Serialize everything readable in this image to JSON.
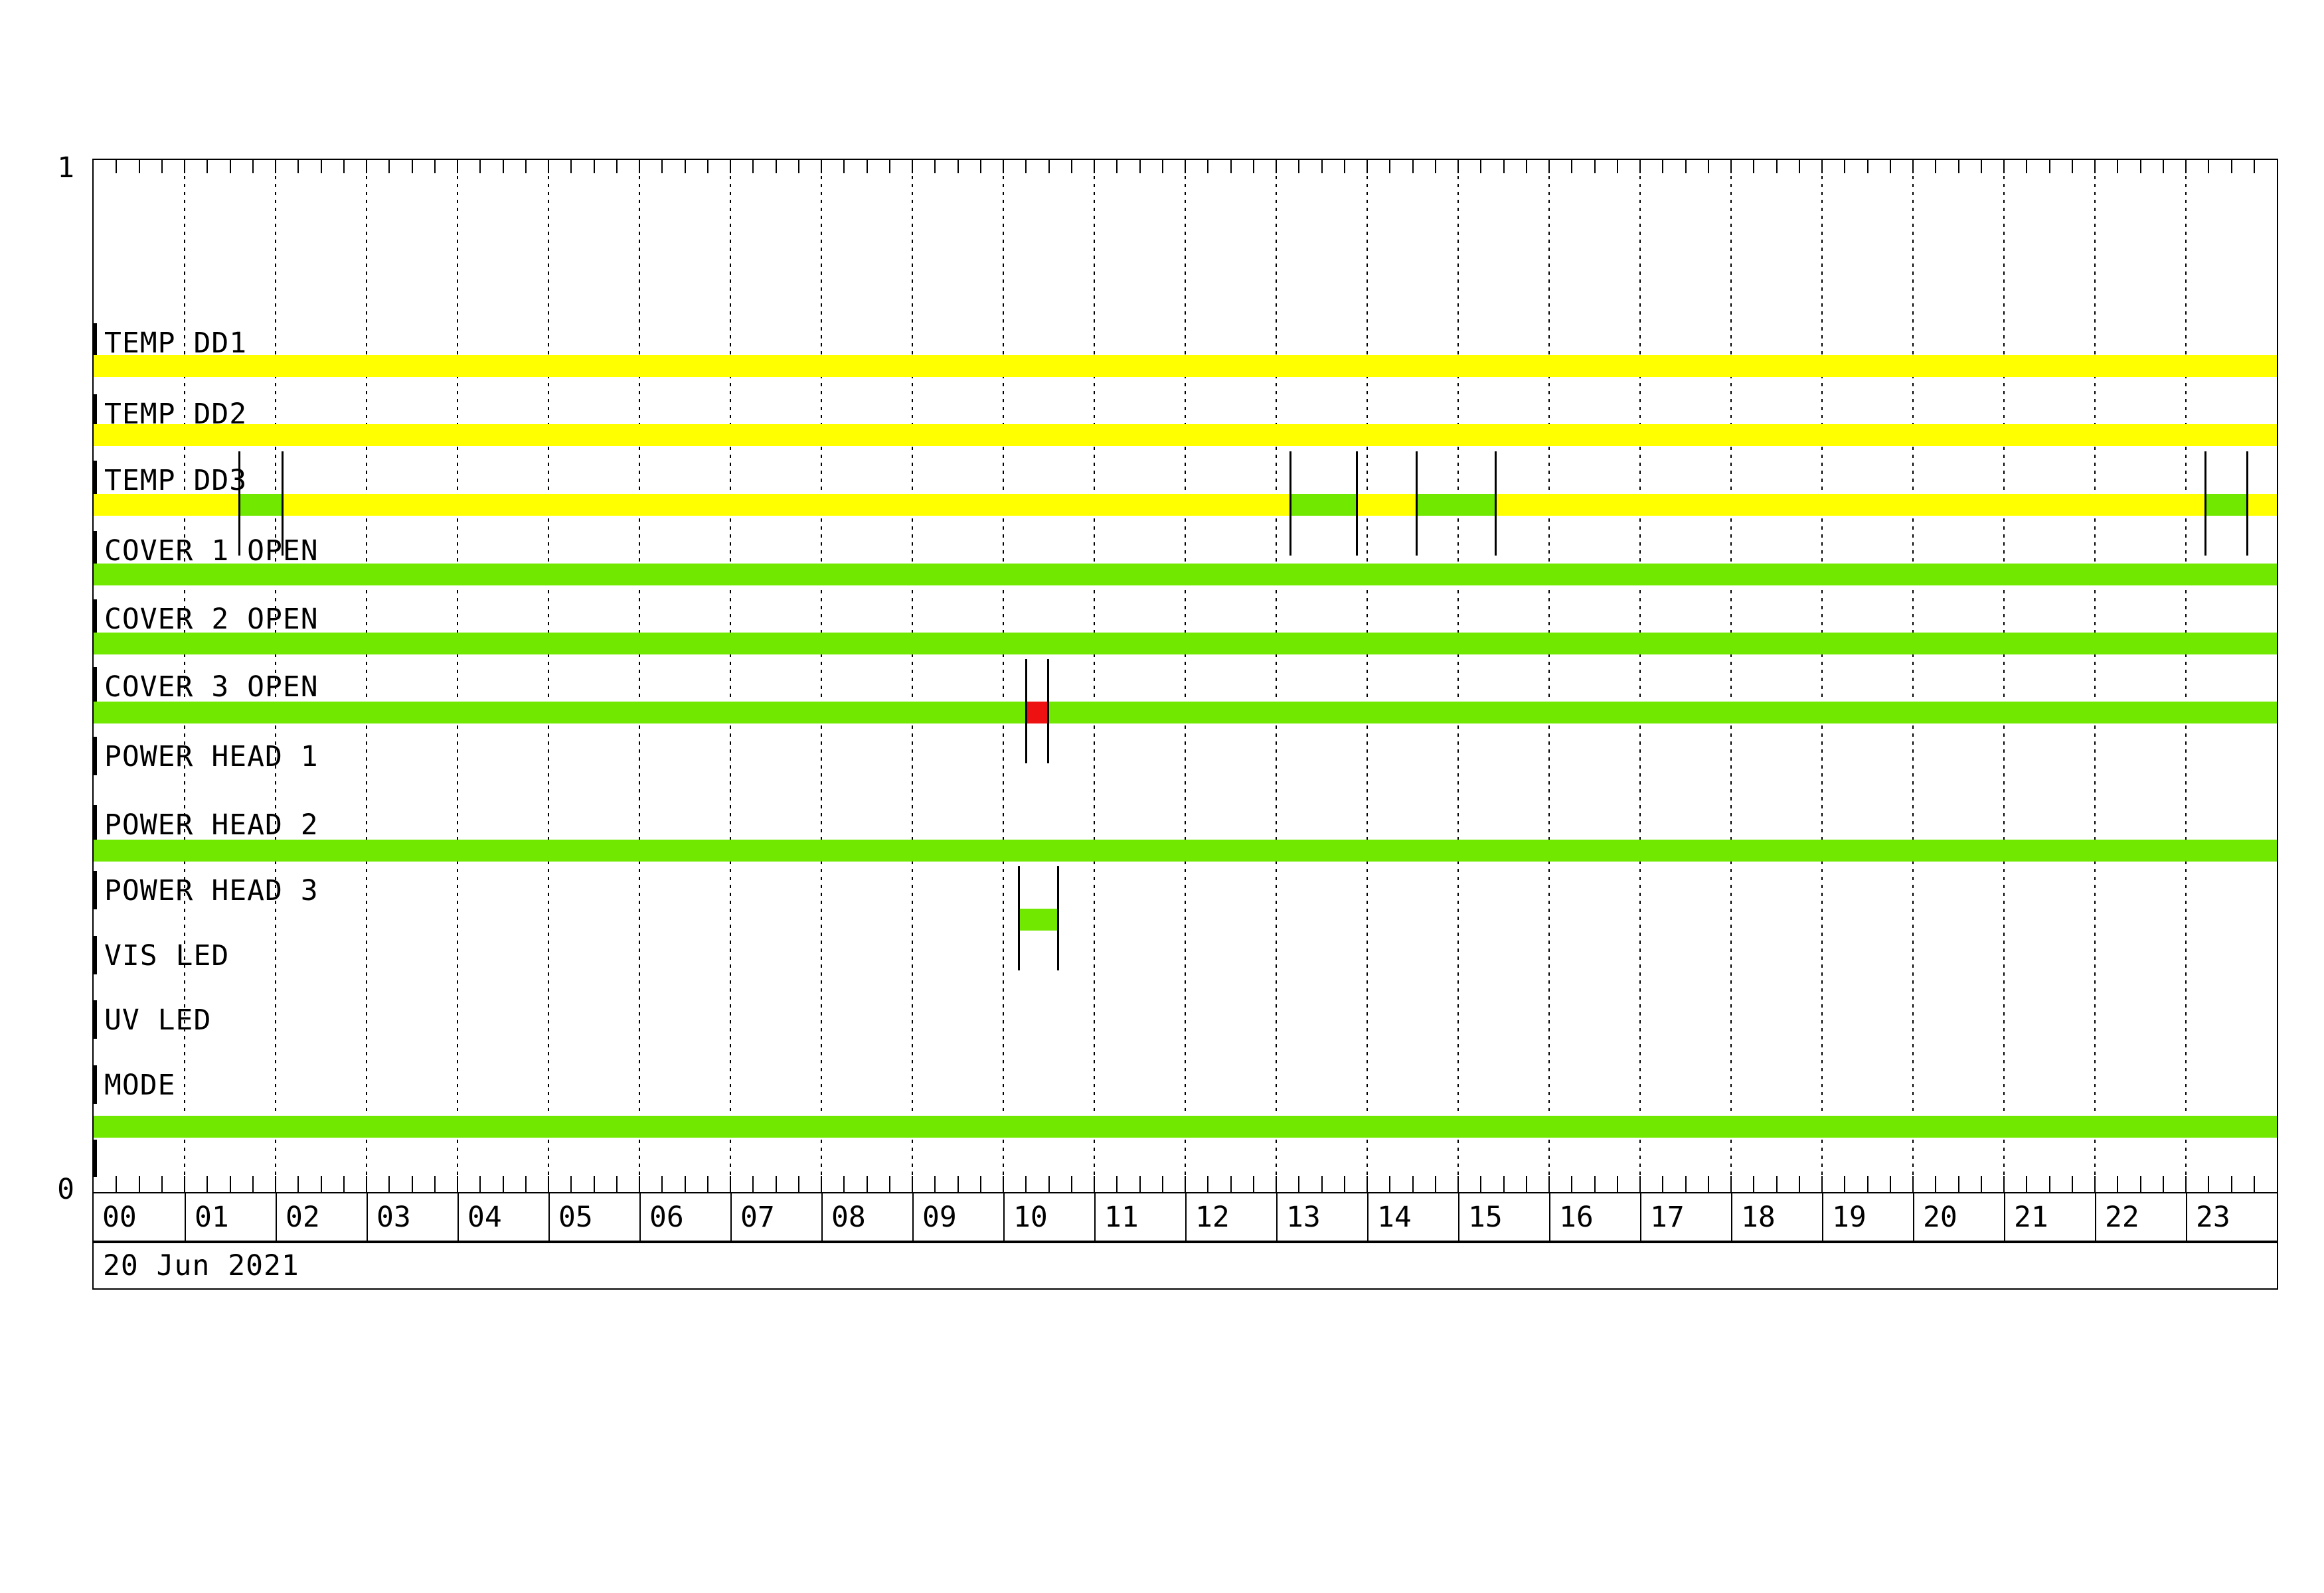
{
  "page": {
    "background": "#ffffff"
  },
  "y_axis": {
    "top_label": "1",
    "bottom_label": "0"
  },
  "colors": {
    "on_yellow": "#ffff00",
    "on_green": "#70e800",
    "alarm_red": "#ee1111",
    "frame_black": "#000000"
  },
  "chart_data": {
    "type": "timeline-status",
    "date": "20 Jun 2021",
    "x_axis": {
      "unit": "hour",
      "min": 0,
      "max": 24,
      "minor_tick_minutes": 15,
      "hour_gridlines": true,
      "hour_labels": [
        "00",
        "01",
        "02",
        "03",
        "04",
        "05",
        "06",
        "07",
        "08",
        "09",
        "10",
        "11",
        "12",
        "13",
        "14",
        "15",
        "16",
        "17",
        "18",
        "19",
        "20",
        "21",
        "22",
        "23"
      ]
    },
    "y_axis_range": [
      0,
      1
    ],
    "legend": "none",
    "rows": [
      {
        "label": "TEMP DD1",
        "base": "yellow",
        "segments": [],
        "markers": []
      },
      {
        "label": "TEMP DD2",
        "base": "yellow",
        "segments": [],
        "markers": []
      },
      {
        "label": "TEMP DD3",
        "base": "yellow",
        "segments": [
          {
            "start": 1.6,
            "end": 2.07,
            "color": "green"
          },
          {
            "start": 13.15,
            "end": 13.88,
            "color": "green"
          },
          {
            "start": 14.54,
            "end": 15.41,
            "color": "green"
          },
          {
            "start": 23.21,
            "end": 23.67,
            "color": "green"
          }
        ],
        "markers": [
          1.6,
          2.07,
          13.15,
          13.88,
          14.54,
          15.41,
          23.21,
          23.67
        ]
      },
      {
        "label": "COVER 1 OPEN",
        "base": "green",
        "segments": [],
        "markers": []
      },
      {
        "label": "COVER 2 OPEN",
        "base": "green",
        "segments": [],
        "markers": []
      },
      {
        "label": "COVER 3 OPEN",
        "base": "green",
        "segments": [
          {
            "start": 10.25,
            "end": 10.49,
            "color": "red"
          }
        ],
        "markers": [
          10.25,
          10.49
        ]
      },
      {
        "label": "POWER HEAD 1",
        "base": "none",
        "segments": [],
        "markers": []
      },
      {
        "label": "POWER HEAD 2",
        "base": "green",
        "segments": [],
        "markers": []
      },
      {
        "label": "POWER HEAD 3",
        "base": "none",
        "segments": [
          {
            "start": 10.17,
            "end": 10.6,
            "color": "green"
          }
        ],
        "markers": [
          10.17,
          10.6
        ]
      },
      {
        "label": "VIS LED",
        "base": "none",
        "segments": [],
        "markers": []
      },
      {
        "label": "UV LED",
        "base": "none",
        "segments": [],
        "markers": []
      },
      {
        "label": "MODE",
        "base": "green",
        "segments": [],
        "markers": []
      }
    ]
  }
}
